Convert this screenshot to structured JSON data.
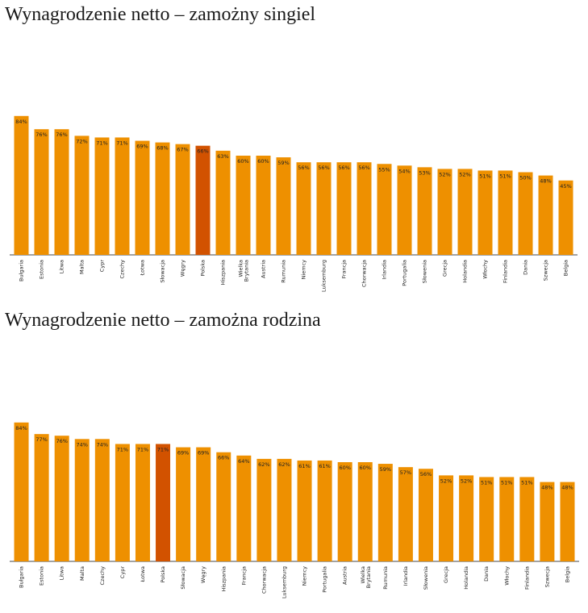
{
  "colors": {
    "bar": "#ee9000",
    "highlight": "#d25200",
    "axis": "#444444"
  },
  "chart_data": [
    {
      "type": "bar",
      "title": "Wynagrodzenie netto – zamożny singiel",
      "xlabel": "",
      "ylabel": "",
      "ylim": [
        0,
        100
      ],
      "grid": false,
      "highlight": "Polska",
      "categories": [
        "Bułgaria",
        "Estonia",
        "Litwa",
        "Malta",
        "Cypr",
        "Czechy",
        "Łotwa",
        "Słowacja",
        "Węgry",
        "Polska",
        "Hiszpania",
        "Wielka Brytania",
        "Austria",
        "Rumunia",
        "Niemcy",
        "Luksemburg",
        "Francja",
        "Chorwacja",
        "Irlandia",
        "Portugalia",
        "Słowenia",
        "Grecja",
        "Holandia",
        "Włochy",
        "Finlandia",
        "Dania",
        "Szwecja",
        "Belgia"
      ],
      "values": [
        84,
        76,
        76,
        72,
        71,
        71,
        69,
        68,
        67,
        66,
        63,
        60,
        60,
        59,
        56,
        56,
        56,
        56,
        55,
        54,
        53,
        52,
        52,
        51,
        51,
        50,
        48,
        45
      ],
      "labels": [
        "84%",
        "76%",
        "76%",
        "72%",
        "71%",
        "71%",
        "69%",
        "68%",
        "67%",
        "66%",
        "63%",
        "60%",
        "60%",
        "59%",
        "56%",
        "56%",
        "56%",
        "56%",
        "55%",
        "54%",
        "53%",
        "52%",
        "52%",
        "51%",
        "51%",
        "50%",
        "48%",
        "45%"
      ]
    },
    {
      "type": "bar",
      "title": "Wynagrodzenie netto – zamożna rodzina",
      "xlabel": "",
      "ylabel": "",
      "ylim": [
        0,
        100
      ],
      "grid": false,
      "highlight": "Polska",
      "categories": [
        "Bułgaria",
        "Estonia",
        "Litwa",
        "Malta",
        "Czechy",
        "Cypr",
        "Łotwa",
        "Polska",
        "Słowacja",
        "Węgry",
        "Hiszpania",
        "Francja",
        "Chorwacja",
        "Luksemburg",
        "Niemcy",
        "Portugalia",
        "Austria",
        "Wielka Brytania",
        "Rumunia",
        "Irlandia",
        "Słowenia",
        "Grecja",
        "Holandia",
        "Dania",
        "Włochy",
        "Finlandia",
        "Szwecja",
        "Belgia"
      ],
      "values": [
        84,
        77,
        76,
        74,
        74,
        71,
        71,
        71,
        69,
        69,
        66,
        64,
        62,
        62,
        61,
        61,
        60,
        60,
        59,
        57,
        56,
        52,
        52,
        51,
        51,
        51,
        48,
        48
      ],
      "labels": [
        "84%",
        "77%",
        "76%",
        "74%",
        "74%",
        "71%",
        "71%",
        "71%",
        "69%",
        "69%",
        "66%",
        "64%",
        "62%",
        "62%",
        "61%",
        "61%",
        "60%",
        "60%",
        "59%",
        "57%",
        "56%",
        "52%",
        "52%",
        "51%",
        "51%",
        "51%",
        "48%",
        "48%"
      ]
    }
  ]
}
